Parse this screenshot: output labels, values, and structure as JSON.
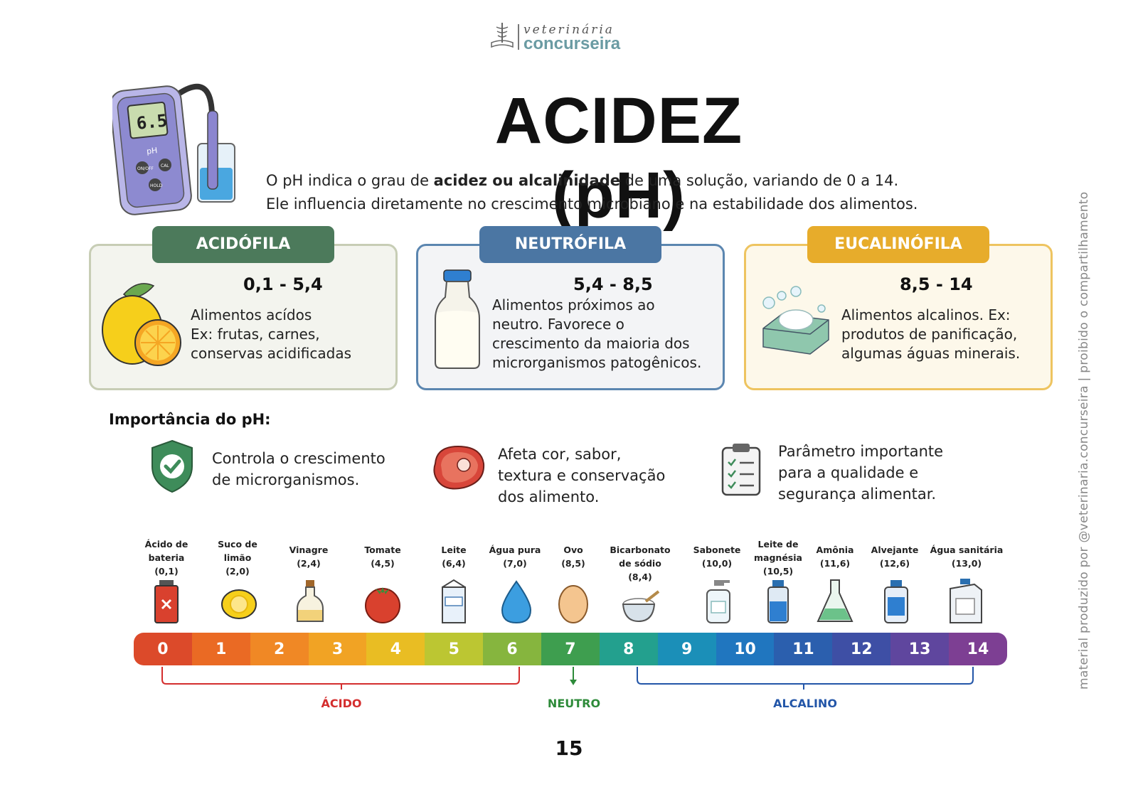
{
  "logo": {
    "line1": "veterinária",
    "line2": "concurseira"
  },
  "title": "ACIDEZ (pH)",
  "intro": {
    "l1_a": "O pH indica o grau de ",
    "l1_b": "acidez ou alcalinidade",
    "l1_c": " de uma solução, variando de 0 a 14.",
    "l2": "Ele influencia diretamente no crescimento microbiano e na estabilidade dos alimentos."
  },
  "meter": {
    "display": "6.5",
    "unit": "pH",
    "brand": "pH",
    "btn1": "ON/OFF",
    "btn2": "CAL",
    "btn3": "HOLD"
  },
  "cards": [
    {
      "tag": "ACIDÓFILA",
      "range": "0,1 - 5,4",
      "lines": [
        "Alimentos acídos",
        "Ex: frutas, carnes,",
        "conservas acidificadas"
      ]
    },
    {
      "tag": "NEUTRÓFILA",
      "range": "5,4 - 8,5",
      "lines": [
        "Alimentos próximos ao",
        "neutro. Favorece o",
        "crescimento da maioria dos",
        "microrganismos patogênicos."
      ]
    },
    {
      "tag": "EUCALINÓFILA",
      "range": "8,5 - 14",
      "lines": [
        "Alimentos alcalinos. Ex:",
        "produtos de panificação,",
        "algumas águas minerais."
      ]
    }
  ],
  "importance": {
    "title": "Importância do pH:",
    "items": [
      {
        "lines": [
          "Controla o crescimento",
          "de microrganismos."
        ]
      },
      {
        "lines": [
          "Afeta cor, sabor,",
          "textura e conservação",
          "dos alimento."
        ]
      },
      {
        "lines": [
          "Parâmetro importante",
          "para a qualidade e",
          "segurança alimentar."
        ]
      }
    ]
  },
  "scale_items": [
    {
      "lines": [
        "Ácido de",
        "bateria",
        "(0,1)"
      ]
    },
    {
      "lines": [
        "Suco de",
        "limão",
        "(2,0)"
      ]
    },
    {
      "lines": [
        "Vinagre",
        "(2,4)"
      ]
    },
    {
      "lines": [
        "Tomate",
        "(4,5)"
      ]
    },
    {
      "lines": [
        "Leite",
        "(6,4)"
      ]
    },
    {
      "lines": [
        "Água pura",
        "(7,0)"
      ]
    },
    {
      "lines": [
        "Ovo",
        "(8,5)"
      ]
    },
    {
      "lines": [
        "Bicarbonato",
        "de sódio",
        "(8,4)"
      ]
    },
    {
      "lines": [
        "Sabonete",
        "(10,0)"
      ]
    },
    {
      "lines": [
        "Leite de",
        "magnésia",
        "(10,5)"
      ]
    },
    {
      "lines": [
        "Amônia",
        "(11,6)"
      ]
    },
    {
      "lines": [
        "Alvejante",
        "(12,6)"
      ]
    },
    {
      "lines": [
        "Água sanitária",
        "(13,0)"
      ]
    }
  ],
  "scale_numbers": [
    "0",
    "1",
    "2",
    "3",
    "4",
    "5",
    "6",
    "7",
    "8",
    "9",
    "10",
    "11",
    "12",
    "13",
    "14"
  ],
  "scale_colors": [
    "#dc4a2a",
    "#ea6a24",
    "#f08825",
    "#f1a324",
    "#e9bd23",
    "#bcc632",
    "#86b53e",
    "#3e9e4f",
    "#23a08e",
    "#1b8fb8",
    "#2076bf",
    "#2b5fae",
    "#3e4fa5",
    "#5f469e",
    "#7d3f93"
  ],
  "labels": {
    "acid": "ÁCIDO",
    "neutral": "NEUTRO",
    "alkaline": "ALCALINO"
  },
  "label_colors": {
    "acid": "#d42e2e",
    "neutral": "#2e8b3a",
    "alkaline": "#2356a8"
  },
  "credit": "material produzido por @veterinaria.concurseira | proibido o compartilhamento",
  "page_number": "15"
}
